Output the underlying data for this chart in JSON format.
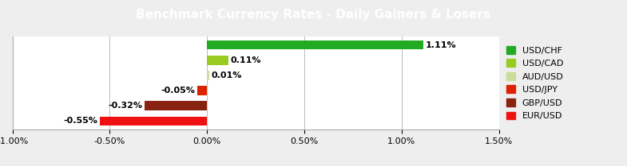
{
  "title": "Benchmark Currency Rates - Daily Gainers & Losers",
  "categories": [
    "USD/CHF",
    "USD/CAD",
    "AUD/USD",
    "USD/JPY",
    "GBP/USD",
    "EUR/USD"
  ],
  "values": [
    1.11,
    0.11,
    0.01,
    -0.05,
    -0.32,
    -0.55
  ],
  "bar_colors": [
    "#22aa22",
    "#99cc22",
    "#ccdd99",
    "#dd2200",
    "#882211",
    "#ee1111"
  ],
  "legend_colors": [
    "#22aa22",
    "#99cc22",
    "#ccdd99",
    "#dd2200",
    "#882211",
    "#ee1111"
  ],
  "xlim": [
    -1.0,
    1.5
  ],
  "xticks": [
    -1.0,
    -0.5,
    0.0,
    0.5,
    1.0,
    1.5
  ],
  "xtick_labels": [
    "-1.00%",
    "-0.50%",
    "0.00%",
    "0.50%",
    "1.00%",
    "1.50%"
  ],
  "title_bg": "#777777",
  "title_color": "#ffffff",
  "title_fontsize": 11,
  "grid_color": "#bbbbbb",
  "plot_bg": "#ffffff",
  "figure_bg": "#eeeeee",
  "label_fontsize": 8,
  "tick_fontsize": 8
}
